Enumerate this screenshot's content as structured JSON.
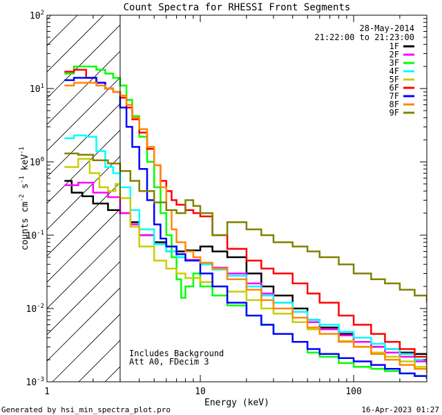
{
  "chart_data": {
    "type": "line",
    "title": "Count Spectra for RHESSI Front Segments",
    "xlabel": "Energy (keV)",
    "ylabel_parts": [
      "counts cm",
      "-2",
      " s",
      "-1",
      " keV",
      "-1"
    ],
    "xscale": "log",
    "yscale": "log",
    "xlim": [
      1,
      300
    ],
    "ylim": [
      0.001,
      100
    ],
    "x_ticks": [
      {
        "v": 1,
        "label": "1"
      },
      {
        "v": 10,
        "label": "10"
      },
      {
        "v": 100,
        "label": "100"
      }
    ],
    "y_ticks": [
      {
        "v": 0.001,
        "base": "10",
        "exp": "-3"
      },
      {
        "v": 0.01,
        "base": "10",
        "exp": "-2"
      },
      {
        "v": 0.1,
        "base": "10",
        "exp": "-1"
      },
      {
        "v": 1,
        "base": "10",
        "exp": "0"
      },
      {
        "v": 10,
        "base": "10",
        "exp": "1"
      },
      {
        "v": 100,
        "base": "10",
        "exp": "2"
      }
    ],
    "shaded_region_upper_energy_kev": 3,
    "legend": {
      "date": "28-May-2014",
      "time_range": "21:22:00 to 21:23:00",
      "placement": "top-right"
    },
    "annotations": [
      "Includes Background",
      "Att A0, FDecim 3"
    ],
    "series": [
      {
        "name": "1F",
        "color": "#000000",
        "points": [
          [
            1.3,
            0.55
          ],
          [
            1.45,
            0.38
          ],
          [
            1.7,
            0.34
          ],
          [
            2.0,
            0.27
          ],
          [
            2.5,
            0.22
          ],
          [
            3.0,
            0.2
          ],
          [
            3.5,
            0.15
          ],
          [
            4.0,
            0.1
          ],
          [
            5.0,
            0.08
          ],
          [
            6.0,
            0.07
          ],
          [
            7.0,
            0.06
          ],
          [
            8.0,
            0.062
          ],
          [
            10,
            0.07
          ],
          [
            12,
            0.06
          ],
          [
            15,
            0.05
          ],
          [
            20,
            0.03
          ],
          [
            25,
            0.02
          ],
          [
            30,
            0.015
          ],
          [
            40,
            0.01
          ],
          [
            50,
            0.007
          ],
          [
            60,
            0.0055
          ],
          [
            80,
            0.0045
          ],
          [
            100,
            0.0035
          ],
          [
            130,
            0.003
          ],
          [
            160,
            0.0028
          ],
          [
            200,
            0.0025
          ],
          [
            250,
            0.0024
          ],
          [
            300,
            0.0023
          ]
        ]
      },
      {
        "name": "2F",
        "color": "#ff00ff",
        "points": [
          [
            1.3,
            0.48
          ],
          [
            1.6,
            0.52
          ],
          [
            2.0,
            0.38
          ],
          [
            2.5,
            0.33
          ],
          [
            3.0,
            0.2
          ],
          [
            3.5,
            0.14
          ],
          [
            4.0,
            0.1
          ],
          [
            5.0,
            0.075
          ],
          [
            6.0,
            0.06
          ],
          [
            7.0,
            0.05
          ],
          [
            8.0,
            0.046
          ],
          [
            10,
            0.04
          ],
          [
            12,
            0.036
          ],
          [
            15,
            0.03
          ],
          [
            20,
            0.022
          ],
          [
            25,
            0.016
          ],
          [
            30,
            0.012
          ],
          [
            40,
            0.009
          ],
          [
            50,
            0.0065
          ],
          [
            60,
            0.0052
          ],
          [
            80,
            0.0043
          ],
          [
            100,
            0.0035
          ],
          [
            130,
            0.003
          ],
          [
            160,
            0.0025
          ],
          [
            200,
            0.0022
          ],
          [
            250,
            0.0019
          ],
          [
            300,
            0.0017
          ]
        ]
      },
      {
        "name": "3F",
        "color": "#00ff00",
        "points": [
          [
            1.3,
            16
          ],
          [
            1.5,
            20
          ],
          [
            1.8,
            20
          ],
          [
            2.1,
            18
          ],
          [
            2.4,
            16
          ],
          [
            2.7,
            14
          ],
          [
            3.0,
            11
          ],
          [
            3.3,
            7
          ],
          [
            3.6,
            4.2
          ],
          [
            4.0,
            2.2
          ],
          [
            4.5,
            1.0
          ],
          [
            5.0,
            0.45
          ],
          [
            5.5,
            0.2
          ],
          [
            6.0,
            0.1
          ],
          [
            6.5,
            0.05
          ],
          [
            7.0,
            0.025
          ],
          [
            7.5,
            0.014
          ],
          [
            8.0,
            0.02
          ],
          [
            9.0,
            0.03
          ],
          [
            10,
            0.02
          ],
          [
            12,
            0.015
          ],
          [
            15,
            0.011
          ],
          [
            20,
            0.008
          ],
          [
            25,
            0.006
          ],
          [
            30,
            0.0045
          ],
          [
            40,
            0.0035
          ],
          [
            50,
            0.0025
          ],
          [
            60,
            0.0022
          ],
          [
            80,
            0.0018
          ],
          [
            100,
            0.0016
          ],
          [
            130,
            0.0015
          ],
          [
            160,
            0.0014
          ],
          [
            200,
            0.0013
          ],
          [
            250,
            0.0012
          ],
          [
            300,
            0.0011
          ]
        ]
      },
      {
        "name": "4F",
        "color": "#00ffff",
        "points": [
          [
            1.3,
            2.1
          ],
          [
            1.5,
            2.3
          ],
          [
            1.8,
            2.2
          ],
          [
            2.1,
            1.4
          ],
          [
            2.4,
            0.85
          ],
          [
            2.7,
            0.7
          ],
          [
            3.0,
            0.45
          ],
          [
            3.5,
            0.22
          ],
          [
            4.0,
            0.12
          ],
          [
            5.0,
            0.075
          ],
          [
            6.0,
            0.06
          ],
          [
            7.0,
            0.05
          ],
          [
            8.0,
            0.045
          ],
          [
            10,
            0.04
          ],
          [
            12,
            0.034
          ],
          [
            15,
            0.028
          ],
          [
            20,
            0.02
          ],
          [
            25,
            0.015
          ],
          [
            30,
            0.012
          ],
          [
            40,
            0.009
          ],
          [
            50,
            0.007
          ],
          [
            60,
            0.006
          ],
          [
            80,
            0.0048
          ],
          [
            100,
            0.004
          ],
          [
            130,
            0.0033
          ],
          [
            160,
            0.0028
          ],
          [
            200,
            0.0024
          ],
          [
            250,
            0.002
          ],
          [
            300,
            0.0018
          ]
        ]
      },
      {
        "name": "5F",
        "color": "#cccc00",
        "points": [
          [
            1.3,
            0.85
          ],
          [
            1.6,
            1.1
          ],
          [
            1.9,
            0.7
          ],
          [
            2.2,
            0.45
          ],
          [
            2.5,
            0.4
          ],
          [
            2.8,
            0.5
          ],
          [
            3.0,
            0.32
          ],
          [
            3.5,
            0.13
          ],
          [
            4.0,
            0.07
          ],
          [
            5.0,
            0.045
          ],
          [
            6.0,
            0.035
          ],
          [
            7.0,
            0.03
          ],
          [
            8.0,
            0.026
          ],
          [
            10,
            0.023
          ],
          [
            12,
            0.02
          ],
          [
            15,
            0.017
          ],
          [
            20,
            0.013
          ],
          [
            25,
            0.01
          ],
          [
            30,
            0.0085
          ],
          [
            40,
            0.0065
          ],
          [
            50,
            0.0052
          ],
          [
            60,
            0.0045
          ],
          [
            80,
            0.0036
          ],
          [
            100,
            0.003
          ],
          [
            130,
            0.0025
          ],
          [
            160,
            0.0022
          ],
          [
            200,
            0.0019
          ],
          [
            250,
            0.0016
          ],
          [
            300,
            0.0014
          ]
        ]
      },
      {
        "name": "6F",
        "color": "#ff0000",
        "points": [
          [
            1.3,
            17
          ],
          [
            1.5,
            18
          ],
          [
            1.8,
            14
          ],
          [
            2.1,
            12
          ],
          [
            2.4,
            10
          ],
          [
            2.7,
            9
          ],
          [
            3.0,
            7.5
          ],
          [
            3.3,
            5.5
          ],
          [
            3.6,
            3.8
          ],
          [
            4.0,
            2.5
          ],
          [
            4.5,
            1.5
          ],
          [
            5.0,
            0.9
          ],
          [
            5.5,
            0.55
          ],
          [
            6.0,
            0.4
          ],
          [
            6.5,
            0.3
          ],
          [
            7.0,
            0.26
          ],
          [
            8.0,
            0.22
          ],
          [
            9.0,
            0.2
          ],
          [
            10,
            0.18
          ],
          [
            12,
            0.1
          ],
          [
            15,
            0.065
          ],
          [
            20,
            0.045
          ],
          [
            25,
            0.035
          ],
          [
            30,
            0.03
          ],
          [
            40,
            0.022
          ],
          [
            50,
            0.016
          ],
          [
            60,
            0.012
          ],
          [
            80,
            0.008
          ],
          [
            100,
            0.006
          ],
          [
            130,
            0.0045
          ],
          [
            160,
            0.0035
          ],
          [
            200,
            0.0028
          ],
          [
            250,
            0.0022
          ],
          [
            300,
            0.0018
          ]
        ]
      },
      {
        "name": "7F",
        "color": "#0000ff",
        "points": [
          [
            1.3,
            13
          ],
          [
            1.5,
            14
          ],
          [
            1.8,
            14
          ],
          [
            2.1,
            12
          ],
          [
            2.4,
            10
          ],
          [
            2.7,
            9
          ],
          [
            3.0,
            5.5
          ],
          [
            3.3,
            3.0
          ],
          [
            3.6,
            1.6
          ],
          [
            4.0,
            0.8
          ],
          [
            4.5,
            0.3
          ],
          [
            5.0,
            0.14
          ],
          [
            5.5,
            0.09
          ],
          [
            6.0,
            0.07
          ],
          [
            7.0,
            0.055
          ],
          [
            8.0,
            0.045
          ],
          [
            10,
            0.03
          ],
          [
            12,
            0.02
          ],
          [
            15,
            0.012
          ],
          [
            20,
            0.008
          ],
          [
            25,
            0.006
          ],
          [
            30,
            0.0045
          ],
          [
            40,
            0.0035
          ],
          [
            50,
            0.0028
          ],
          [
            60,
            0.0024
          ],
          [
            80,
            0.0021
          ],
          [
            100,
            0.0019
          ],
          [
            130,
            0.0017
          ],
          [
            160,
            0.0015
          ],
          [
            200,
            0.0013
          ],
          [
            250,
            0.0012
          ],
          [
            300,
            0.0011
          ]
        ]
      },
      {
        "name": "8F",
        "color": "#ff8800",
        "points": [
          [
            1.3,
            11
          ],
          [
            1.5,
            12
          ],
          [
            1.8,
            12
          ],
          [
            2.1,
            11
          ],
          [
            2.4,
            10
          ],
          [
            2.7,
            9
          ],
          [
            3.0,
            8
          ],
          [
            3.3,
            6
          ],
          [
            3.6,
            4
          ],
          [
            4.0,
            2.8
          ],
          [
            4.5,
            1.6
          ],
          [
            5.0,
            0.9
          ],
          [
            5.5,
            0.45
          ],
          [
            6.0,
            0.22
          ],
          [
            6.5,
            0.12
          ],
          [
            7.0,
            0.08
          ],
          [
            8.0,
            0.06
          ],
          [
            9.0,
            0.05
          ],
          [
            10,
            0.042
          ],
          [
            12,
            0.035
          ],
          [
            15,
            0.025
          ],
          [
            20,
            0.018
          ],
          [
            25,
            0.013
          ],
          [
            30,
            0.01
          ],
          [
            40,
            0.0075
          ],
          [
            50,
            0.0055
          ],
          [
            60,
            0.0045
          ],
          [
            80,
            0.0035
          ],
          [
            100,
            0.003
          ],
          [
            130,
            0.0024
          ],
          [
            160,
            0.002
          ],
          [
            200,
            0.0017
          ],
          [
            250,
            0.0015
          ],
          [
            300,
            0.0013
          ]
        ]
      },
      {
        "name": "9F",
        "color": "#808000",
        "points": [
          [
            1.3,
            1.3
          ],
          [
            1.6,
            1.25
          ],
          [
            2.0,
            1.05
          ],
          [
            2.5,
            0.95
          ],
          [
            3.0,
            0.75
          ],
          [
            3.5,
            0.55
          ],
          [
            4.0,
            0.4
          ],
          [
            5.0,
            0.28
          ],
          [
            6.0,
            0.22
          ],
          [
            7.0,
            0.2
          ],
          [
            8.0,
            0.3
          ],
          [
            9.0,
            0.25
          ],
          [
            10,
            0.2
          ],
          [
            12,
            0.1
          ],
          [
            15,
            0.15
          ],
          [
            20,
            0.12
          ],
          [
            25,
            0.1
          ],
          [
            30,
            0.08
          ],
          [
            40,
            0.07
          ],
          [
            50,
            0.06
          ],
          [
            60,
            0.05
          ],
          [
            80,
            0.04
          ],
          [
            100,
            0.03
          ],
          [
            130,
            0.025
          ],
          [
            160,
            0.022
          ],
          [
            200,
            0.018
          ],
          [
            250,
            0.015
          ],
          [
            300,
            0.012
          ]
        ]
      }
    ]
  },
  "footer": {
    "left": "Generated by hsi_min_spectra_plot.pro",
    "right": "16-Apr-2023 01:27"
  }
}
